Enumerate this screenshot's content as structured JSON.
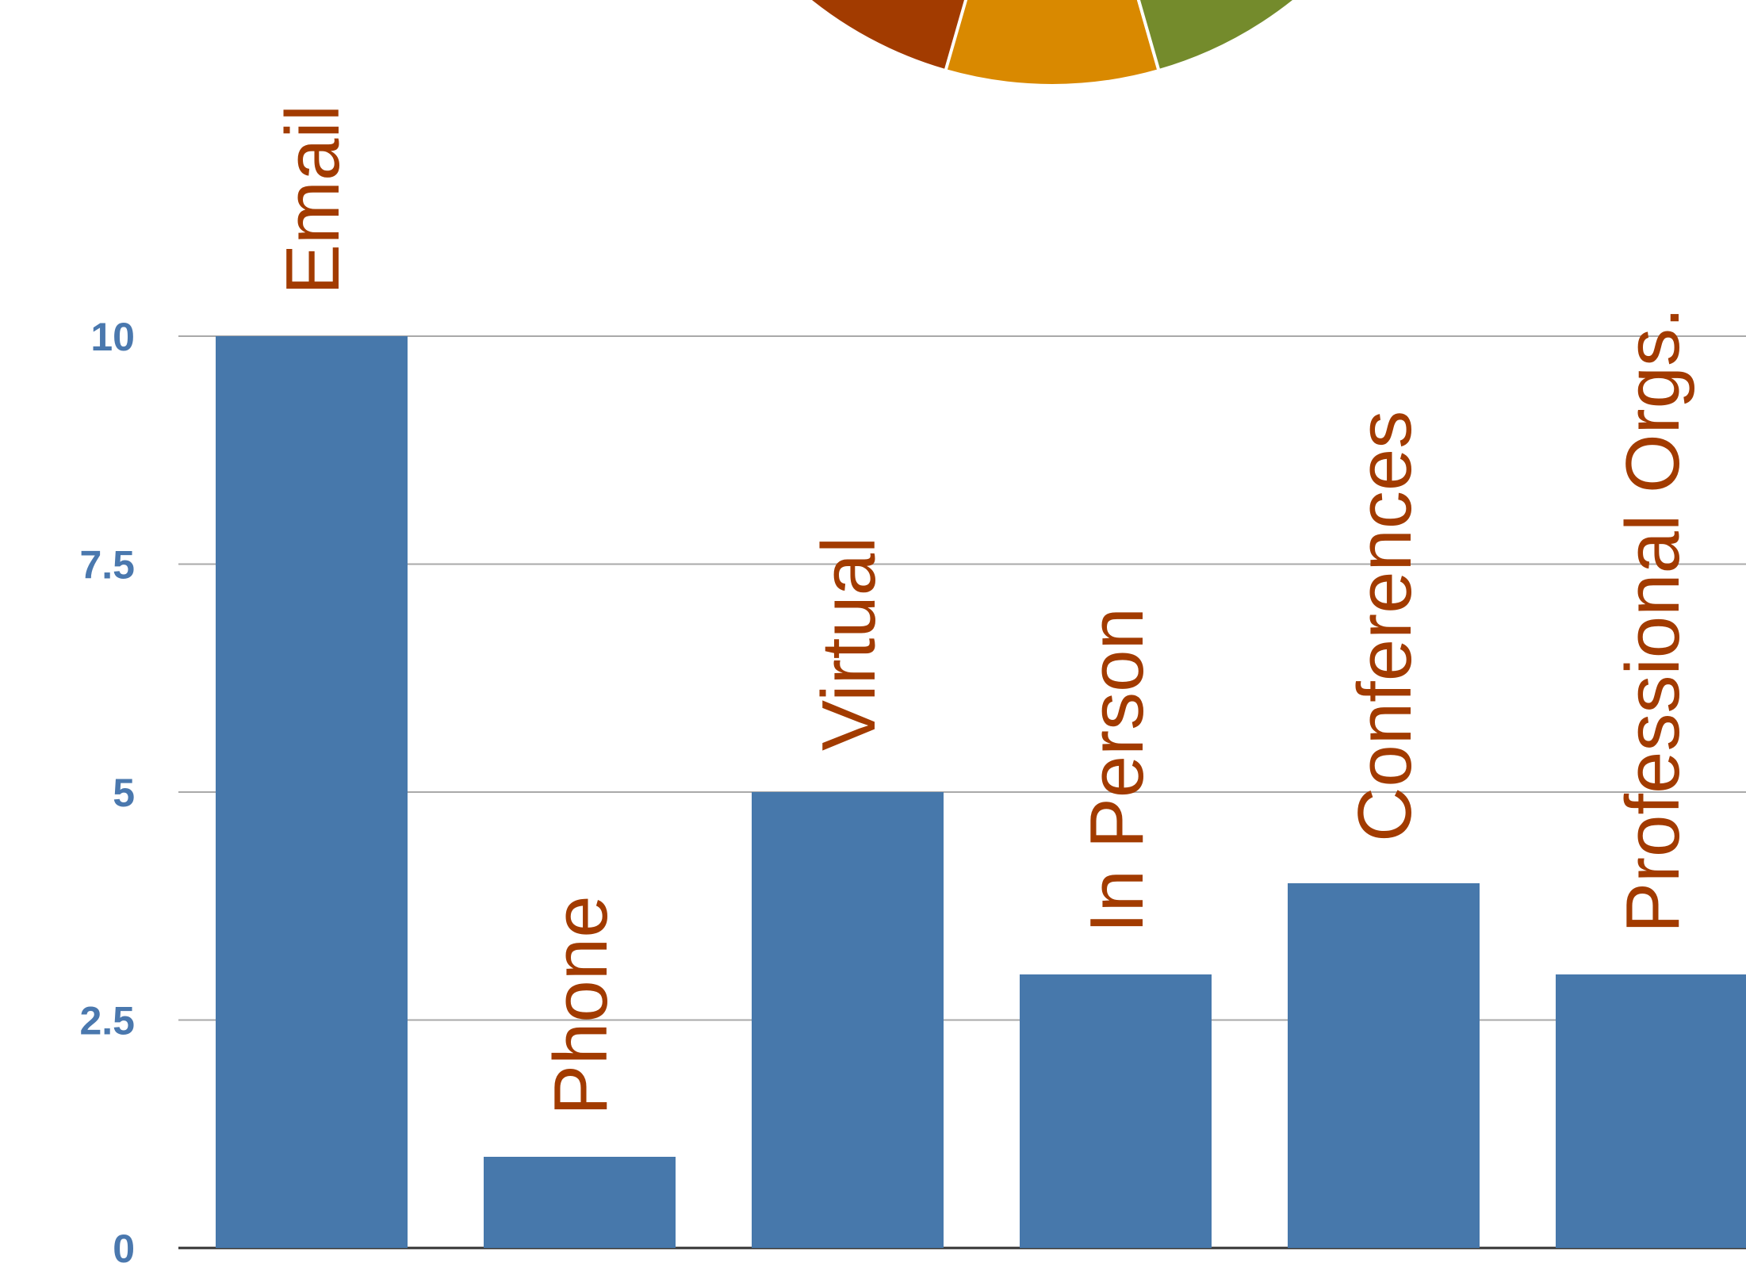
{
  "chart_data": {
    "type": "bar",
    "categories": [
      "Email",
      "Phone",
      "Virtual",
      "In Person",
      "Conferences",
      "Professional Orgs."
    ],
    "values": [
      10,
      1,
      5,
      3,
      4,
      3
    ],
    "ylim": [
      0,
      10
    ],
    "yticks": [
      "0",
      "2.5",
      "5",
      "7.5",
      "10"
    ],
    "ytick_values": [
      0,
      2.5,
      5,
      7.5,
      10
    ],
    "grid": true,
    "colors": {
      "bar": "#4778ab",
      "label": "#a23b00",
      "tick": "#4a78ae",
      "grid": "#a9a9a9",
      "pie": [
        "#a23b00",
        "#d98900",
        "#748b2c"
      ]
    }
  }
}
